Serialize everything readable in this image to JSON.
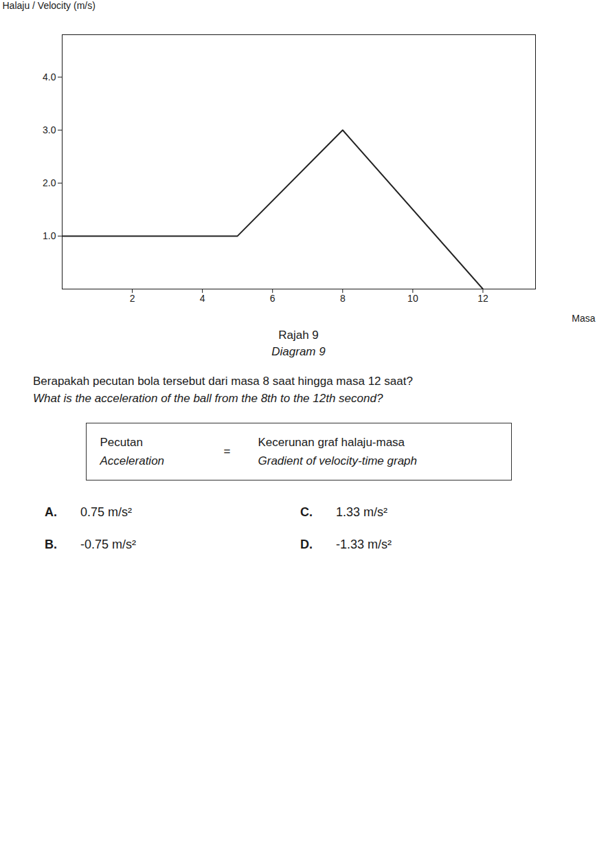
{
  "chart_data": {
    "type": "line",
    "x_label": "Masa",
    "y_label": "Halaju / Velocity (m/s)",
    "x": [
      0,
      5,
      8,
      12
    ],
    "values": [
      1,
      1,
      3,
      0
    ],
    "color": "#222222",
    "xlim": [
      0,
      13.5
    ],
    "ylim": [
      0,
      4.8
    ],
    "xticks": [
      2,
      4,
      6,
      8,
      10,
      12
    ],
    "yticks": [
      1,
      2,
      3,
      4
    ],
    "annotations": {
      "caption": [
        "Rajah 9",
        "Diagram 9"
      ],
      "question": [
        "Berapakah pecutan bola tersebut dari masa 8 saat hingga masa 12 saat?",
        "What is the acceleration of the ball from the 8th to the 12th second?"
      ],
      "box": {
        "left": [
          "Pecutan",
          "Acceleration"
        ],
        "equals": "=",
        "right": [
          "Kecerunan graf halaju-masa",
          "Gradient of velocity-time graph"
        ]
      },
      "answers": [
        {
          "label": "A.",
          "text": "0.75 m/s²"
        },
        {
          "label": "B.",
          "text": "-0.75 m/s²"
        },
        {
          "label": "C.",
          "text": "1.33 m/s²"
        },
        {
          "label": "D.",
          "text": "-1.33 m/s²"
        }
      ]
    }
  }
}
